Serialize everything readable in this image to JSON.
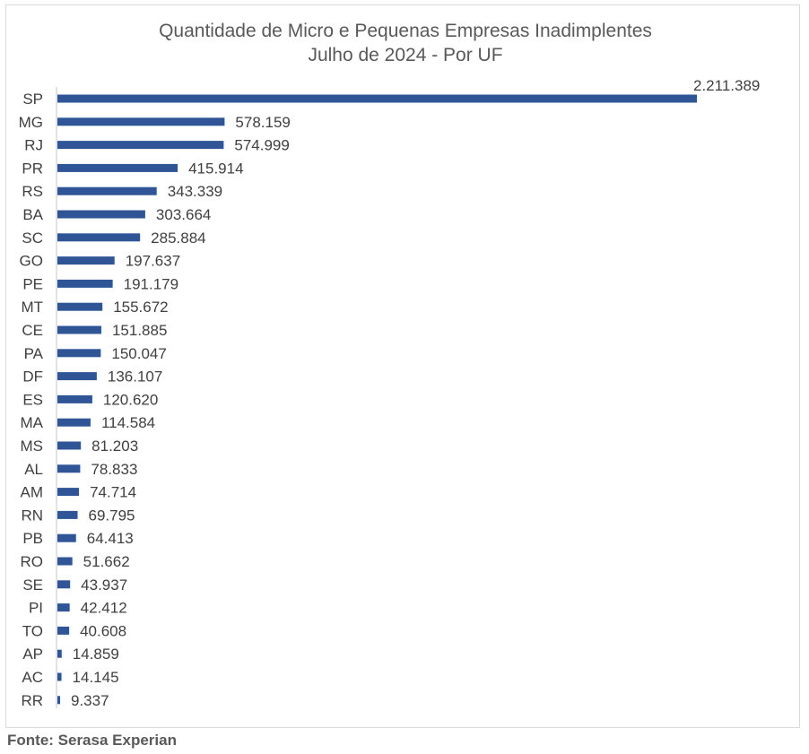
{
  "chart_data": {
    "type": "bar",
    "orientation": "horizontal",
    "title": "Quantidade de Micro e Pequenas Empresas Inadimplentes",
    "subtitle": "Julho de 2024 - Por UF",
    "xlabel": "",
    "ylabel": "",
    "grid": false,
    "legend": "none",
    "bar_color": "#2f5597",
    "categories": [
      "SP",
      "MG",
      "RJ",
      "PR",
      "RS",
      "BA",
      "SC",
      "GO",
      "PE",
      "MT",
      "CE",
      "PA",
      "DF",
      "ES",
      "MA",
      "MS",
      "AL",
      "AM",
      "RN",
      "PB",
      "RO",
      "SE",
      "PI",
      "TO",
      "AP",
      "AC",
      "RR"
    ],
    "values": [
      2211389,
      578159,
      574999,
      415914,
      343339,
      303664,
      285884,
      197637,
      191179,
      155672,
      151885,
      150047,
      136107,
      120620,
      114584,
      81203,
      78833,
      74714,
      69795,
      64413,
      51662,
      43937,
      42412,
      40608,
      14859,
      14145,
      9337
    ],
    "value_labels": [
      "2.211.389",
      "578.159",
      "574.999",
      "415.914",
      "343.339",
      "303.664",
      "285.884",
      "197.637",
      "191.179",
      "155.672",
      "151.885",
      "150.047",
      "136.107",
      "120.620",
      "114.584",
      "81.203",
      "78.833",
      "74.714",
      "69.795",
      "64.413",
      "51.662",
      "43.937",
      "42.412",
      "40.608",
      "14.859",
      "14.145",
      "9.337"
    ]
  },
  "source": "Fonte: Serasa Experian"
}
